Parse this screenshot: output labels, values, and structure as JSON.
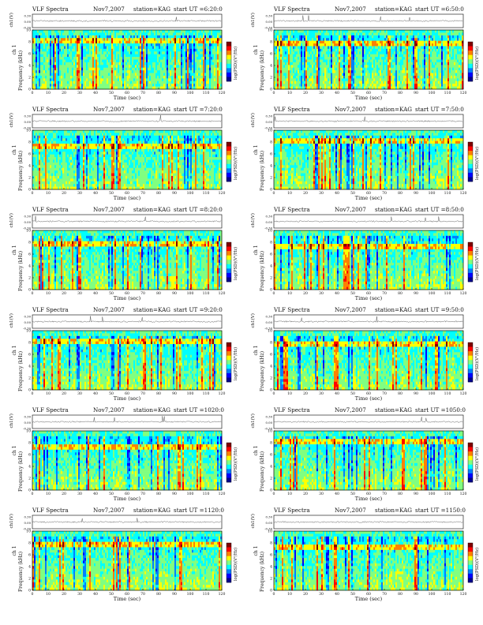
{
  "page": {
    "colors": {
      "colormap": [
        "#00008f",
        "#0000ff",
        "#0080ff",
        "#00ffff",
        "#80ff80",
        "#ffff00",
        "#ff8000",
        "#ff0000",
        "#800000"
      ],
      "trace": "#333333",
      "axis": "#000000"
    }
  },
  "chart_data": [
    {
      "type": "heatmap",
      "title": "VLF Spectra",
      "date": "Nov7,2007",
      "station": "station=KAG",
      "start": "start  UT =6:20:0",
      "xlabel": "Time (sec)",
      "ylabel_channel": "ch 1",
      "ylabel_freq": "Frequency (kHz)",
      "ylabel_trace": "ch1(V)",
      "trace_ticks": [
        "0.30",
        "0.00",
        "-0.30"
      ],
      "colorbar_label": "log(PSD)(V²/Hz)",
      "xlim": [
        0,
        120
      ],
      "ylim": [
        0,
        10
      ],
      "xticks": [
        "0",
        "10",
        "20",
        "30",
        "40",
        "50",
        "60",
        "70",
        "80",
        "90",
        "100",
        "110",
        "120"
      ],
      "yticks": [
        "0",
        "2",
        "4",
        "6",
        "8",
        "10"
      ]
    },
    {
      "type": "heatmap",
      "title": "VLF Spectra",
      "date": "Nov7,2007",
      "station": "station=KAG",
      "start": "start  UT =6:50:0",
      "xlabel": "Time (sec)",
      "ylabel_channel": "ch 1",
      "ylabel_freq": "Frequency (kHz)",
      "ylabel_trace": "ch1(V)",
      "trace_ticks": [
        "0.30",
        "0.00",
        "-0.30"
      ],
      "colorbar_label": "log(PSD)(V²/Hz)",
      "xlim": [
        0,
        120
      ],
      "ylim": [
        0,
        10
      ],
      "xticks": [
        "0",
        "10",
        "20",
        "30",
        "40",
        "50",
        "60",
        "70",
        "80",
        "90",
        "100",
        "110",
        "120"
      ],
      "yticks": [
        "0",
        "2",
        "4",
        "6",
        "8",
        "10"
      ]
    },
    {
      "type": "heatmap",
      "title": "VLF Spectra",
      "date": "Nov7,2007",
      "station": "station=KAG",
      "start": "start  UT =7:20:0",
      "xlabel": "Time (sec)",
      "ylabel_channel": "ch 1",
      "ylabel_freq": "Frequency (kHz)",
      "ylabel_trace": "ch1(V)",
      "trace_ticks": [
        "0.30",
        "0.00",
        "-0.30"
      ],
      "colorbar_label": "log(PSD)(V²/Hz)",
      "xlim": [
        0,
        120
      ],
      "ylim": [
        0,
        10
      ],
      "xticks": [
        "0",
        "10",
        "20",
        "30",
        "40",
        "50",
        "60",
        "70",
        "80",
        "90",
        "100",
        "110",
        "120"
      ],
      "yticks": [
        "0",
        "2",
        "4",
        "6",
        "8",
        "10"
      ]
    },
    {
      "type": "heatmap",
      "title": "VLF Spectra",
      "date": "Nov7,2007",
      "station": "station=KAG",
      "start": "start  UT =7:50:0",
      "xlabel": "Time (sec)",
      "ylabel_channel": "ch 1",
      "ylabel_freq": "Frequency (kHz)",
      "ylabel_trace": "ch1(V)",
      "trace_ticks": [
        "0.30",
        "0.00",
        "-0.30"
      ],
      "colorbar_label": "log(PSD)(V²/Hz)",
      "xlim": [
        0,
        120
      ],
      "ylim": [
        0,
        10
      ],
      "xticks": [
        "0",
        "10",
        "20",
        "30",
        "40",
        "50",
        "60",
        "70",
        "80",
        "90",
        "100",
        "110",
        "120"
      ],
      "yticks": [
        "0",
        "2",
        "4",
        "6",
        "8",
        "10"
      ]
    },
    {
      "type": "heatmap",
      "title": "VLF Spectra",
      "date": "Nov7,2007",
      "station": "station=KAG",
      "start": "start  UT =8:20:0",
      "xlabel": "Time (sec)",
      "ylabel_channel": "ch 1",
      "ylabel_freq": "Frequency (kHz)",
      "ylabel_trace": "ch1(V)",
      "trace_ticks": [
        "0.30",
        "0.00",
        "-0.30"
      ],
      "colorbar_label": "log(PSD)(V²/Hz)",
      "xlim": [
        0,
        120
      ],
      "ylim": [
        0,
        10
      ],
      "xticks": [
        "0",
        "10",
        "20",
        "30",
        "40",
        "50",
        "60",
        "70",
        "80",
        "90",
        "100",
        "110",
        "120"
      ],
      "yticks": [
        "0",
        "2",
        "4",
        "6",
        "8",
        "10"
      ]
    },
    {
      "type": "heatmap",
      "title": "VLF Spectra",
      "date": "Nov7,2007",
      "station": "station=KAG",
      "start": "start  UT =8:50:0",
      "xlabel": "Time (sec)",
      "ylabel_channel": "ch 1",
      "ylabel_freq": "Frequency (kHz)",
      "ylabel_trace": "ch1(V)",
      "trace_ticks": [
        "0.30",
        "0.00",
        "-0.30"
      ],
      "colorbar_label": "log(PSD)(V²/Hz)",
      "xlim": [
        0,
        120
      ],
      "ylim": [
        0,
        10
      ],
      "xticks": [
        "0",
        "10",
        "20",
        "30",
        "40",
        "50",
        "60",
        "70",
        "80",
        "90",
        "100",
        "110",
        "120"
      ],
      "yticks": [
        "0",
        "2",
        "4",
        "6",
        "8",
        "10"
      ]
    },
    {
      "type": "heatmap",
      "title": "VLF Spectra",
      "date": "Nov7,2007",
      "station": "station=KAG",
      "start": "start  UT =9:20:0",
      "xlabel": "Time (sec)",
      "ylabel_channel": "ch 1",
      "ylabel_freq": "Frequency (kHz)",
      "ylabel_trace": "ch1(V)",
      "trace_ticks": [
        "0.30",
        "0.00",
        "-0.30"
      ],
      "colorbar_label": "log(PSD)(V²/Hz)",
      "xlim": [
        0,
        120
      ],
      "ylim": [
        0,
        10
      ],
      "xticks": [
        "0",
        "10",
        "20",
        "30",
        "40",
        "50",
        "60",
        "70",
        "80",
        "90",
        "100",
        "110",
        "120"
      ],
      "yticks": [
        "0",
        "2",
        "4",
        "6",
        "8",
        "10"
      ]
    },
    {
      "type": "heatmap",
      "title": "VLF Spectra",
      "date": "Nov7,2007",
      "station": "station=KAG",
      "start": "start  UT =9:50:0",
      "xlabel": "Time (sec)",
      "ylabel_channel": "ch 1",
      "ylabel_freq": "Frequency (kHz)",
      "ylabel_trace": "ch1(V)",
      "trace_ticks": [
        "0.30",
        "0.00",
        "-0.30"
      ],
      "colorbar_label": "log(PSD)(V²/Hz)",
      "xlim": [
        0,
        120
      ],
      "ylim": [
        0,
        10
      ],
      "xticks": [
        "0",
        "10",
        "20",
        "30",
        "40",
        "50",
        "60",
        "70",
        "80",
        "90",
        "100",
        "110",
        "120"
      ],
      "yticks": [
        "0",
        "2",
        "4",
        "6",
        "8",
        "10"
      ]
    },
    {
      "type": "heatmap",
      "title": "VLF Spectra",
      "date": "Nov7,2007",
      "station": "station=KAG",
      "start": "start  UT =1020:0",
      "xlabel": "Time (sec)",
      "ylabel_channel": "ch 1",
      "ylabel_freq": "Frequency (kHz)",
      "ylabel_trace": "ch1(V)",
      "trace_ticks": [
        "0.30",
        "0.00",
        "-0.30"
      ],
      "colorbar_label": "log(PSD)(V²/Hz)",
      "xlim": [
        0,
        120
      ],
      "ylim": [
        0,
        10
      ],
      "xticks": [
        "0",
        "10",
        "20",
        "30",
        "40",
        "50",
        "60",
        "70",
        "80",
        "90",
        "100",
        "110",
        "120"
      ],
      "yticks": [
        "0",
        "2",
        "4",
        "6",
        "8",
        "10"
      ]
    },
    {
      "type": "heatmap",
      "title": "VLF Spectra",
      "date": "Nov7,2007",
      "station": "station=KAG",
      "start": "start  UT =1050:0",
      "xlabel": "Time (sec)",
      "ylabel_channel": "ch 1",
      "ylabel_freq": "Frequency (kHz)",
      "ylabel_trace": "ch1(V)",
      "trace_ticks": [
        "0.30",
        "0.00",
        "-0.30"
      ],
      "colorbar_label": "log(PSD)(V²/Hz)",
      "xlim": [
        0,
        120
      ],
      "ylim": [
        0,
        10
      ],
      "xticks": [
        "0",
        "10",
        "20",
        "30",
        "40",
        "50",
        "60",
        "70",
        "80",
        "90",
        "100",
        "110",
        "120"
      ],
      "yticks": [
        "0",
        "2",
        "4",
        "6",
        "8",
        "10"
      ]
    },
    {
      "type": "heatmap",
      "title": "VLF Spectra",
      "date": "Nov7,2007",
      "station": "station=KAG",
      "start": "start  UT =1120:0",
      "xlabel": "Time (sec)",
      "ylabel_channel": "ch 1",
      "ylabel_freq": "Frequency (kHz)",
      "ylabel_trace": "ch1(V)",
      "trace_ticks": [
        "0.30",
        "0.00",
        "-0.30"
      ],
      "colorbar_label": "log(PSD)(V²/Hz)",
      "xlim": [
        0,
        120
      ],
      "ylim": [
        0,
        10
      ],
      "xticks": [
        "0",
        "10",
        "20",
        "30",
        "40",
        "50",
        "60",
        "70",
        "80",
        "90",
        "100",
        "110",
        "120"
      ],
      "yticks": [
        "0",
        "2",
        "4",
        "6",
        "8",
        "10"
      ]
    },
    {
      "type": "heatmap",
      "title": "VLF Spectra",
      "date": "Nov7,2007",
      "station": "station=KAG",
      "start": "start  UT =1150:0",
      "xlabel": "Time (sec)",
      "ylabel_channel": "ch 1",
      "ylabel_freq": "Frequency (kHz)",
      "ylabel_trace": "ch1(V)",
      "trace_ticks": [
        "0.30",
        "0.00",
        "-0.30"
      ],
      "colorbar_label": "log(PSD)(V²/Hz)",
      "xlim": [
        0,
        120
      ],
      "ylim": [
        0,
        10
      ],
      "xticks": [
        "0",
        "10",
        "20",
        "30",
        "40",
        "50",
        "60",
        "70",
        "80",
        "90",
        "100",
        "110",
        "120"
      ],
      "yticks": [
        "0",
        "2",
        "4",
        "6",
        "8",
        "10"
      ]
    }
  ]
}
